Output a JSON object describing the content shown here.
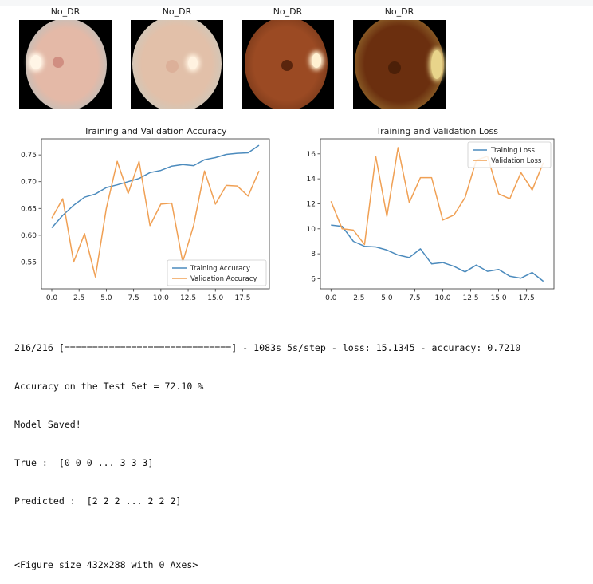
{
  "thumbnails": [
    {
      "label": "No_DR",
      "fundus": "#e4b9a7",
      "rim": "#9cc6cf",
      "disc": "#fff5e6",
      "macula": "#c77c70"
    },
    {
      "label": "No_DR",
      "fundus": "#e2c0a9",
      "rim": "#b9d1cf",
      "disc": "#fff2e0",
      "macula": "#d9a58f"
    },
    {
      "label": "No_DR",
      "fundus": "#9b4a23",
      "rim": "#5a2a12",
      "disc": "#fff1d2",
      "macula": "#4a1c08"
    },
    {
      "label": "No_DR",
      "fundus": "#6b2f0f",
      "rim": "#b9a24a",
      "disc": "#e8d48a",
      "macula": "#3f1a06"
    }
  ],
  "chart_data": [
    {
      "type": "line",
      "title": "Training and Validation Accuracy",
      "x": [
        0,
        1,
        2,
        3,
        4,
        5,
        6,
        7,
        8,
        9,
        10,
        11,
        12,
        13,
        14,
        15,
        16,
        17,
        18,
        19
      ],
      "xticks": [
        "0.0",
        "2.5",
        "5.0",
        "7.5",
        "10.0",
        "12.5",
        "15.0",
        "17.5"
      ],
      "xtick_values": [
        0,
        2.5,
        5,
        7.5,
        10,
        12.5,
        15,
        17.5
      ],
      "yticks": [
        "0.55",
        "0.60",
        "0.65",
        "0.70",
        "0.75"
      ],
      "ytick_values": [
        0.55,
        0.6,
        0.65,
        0.7,
        0.75
      ],
      "xlim": [
        -0.95,
        19.95
      ],
      "ylim": [
        0.5,
        0.78
      ],
      "legend_position": "lower-right",
      "series": [
        {
          "name": "Training Accuracy",
          "color": "#4c8bbd",
          "values": [
            0.614,
            0.637,
            0.656,
            0.671,
            0.677,
            0.689,
            0.694,
            0.7,
            0.706,
            0.717,
            0.721,
            0.729,
            0.732,
            0.73,
            0.741,
            0.745,
            0.751,
            0.753,
            0.754,
            0.768
          ]
        },
        {
          "name": "Validation Accuracy",
          "color": "#f0a054",
          "values": [
            0.632,
            0.668,
            0.55,
            0.603,
            0.522,
            0.65,
            0.738,
            0.678,
            0.738,
            0.618,
            0.658,
            0.66,
            0.55,
            0.618,
            0.72,
            0.658,
            0.693,
            0.692,
            0.673,
            0.72
          ]
        }
      ]
    },
    {
      "type": "line",
      "title": "Training and Validation Loss",
      "x": [
        0,
        1,
        2,
        3,
        4,
        5,
        6,
        7,
        8,
        9,
        10,
        11,
        12,
        13,
        14,
        15,
        16,
        17,
        18,
        19
      ],
      "xticks": [
        "0.0",
        "2.5",
        "5.0",
        "7.5",
        "10.0",
        "12.5",
        "15.0",
        "17.5"
      ],
      "xtick_values": [
        0,
        2.5,
        5,
        7.5,
        10,
        12.5,
        15,
        17.5
      ],
      "yticks": [
        "6",
        "8",
        "10",
        "12",
        "14",
        "16"
      ],
      "ytick_values": [
        6,
        8,
        10,
        12,
        14,
        16
      ],
      "xlim": [
        -0.95,
        19.95
      ],
      "ylim": [
        5.2,
        17.2
      ],
      "legend_position": "upper-right",
      "series": [
        {
          "name": "Training Loss",
          "color": "#4c8bbd",
          "values": [
            10.3,
            10.2,
            9.0,
            8.6,
            8.55,
            8.3,
            7.9,
            7.7,
            8.4,
            7.2,
            7.3,
            7.0,
            6.55,
            7.1,
            6.6,
            6.75,
            6.2,
            6.05,
            6.5,
            5.8
          ]
        },
        {
          "name": "Validation Loss",
          "color": "#f0a054",
          "values": [
            12.2,
            10.0,
            9.9,
            8.75,
            15.8,
            11.0,
            16.5,
            12.1,
            14.1,
            14.1,
            10.7,
            11.1,
            12.5,
            15.5,
            15.8,
            12.8,
            12.4,
            14.5,
            13.1,
            15.3
          ]
        }
      ]
    }
  ],
  "console": {
    "lines": [
      "216/216 [==============================] - 1083s 5s/step - loss: 15.1345 - accuracy: 0.7210",
      "Accuracy on the Test Set = 72.10 %",
      "Model Saved!",
      "True :  [0 0 0 ... 3 3 3]",
      "Predicted :  [2 2 2 ... 2 2 2]",
      "",
      "<Figure size 432x288 with 0 Axes>"
    ]
  }
}
